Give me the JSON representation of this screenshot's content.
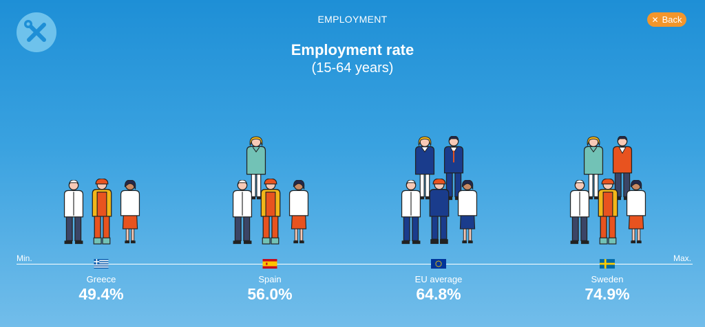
{
  "header": {
    "section_title": "EMPLOYMENT",
    "back_label": "Back",
    "app_icon": "tools-icon"
  },
  "chart_data": {
    "type": "pictogram",
    "title": "Employment rate",
    "subtitle": "(15-64 years)",
    "axis_min_label": "Min.",
    "axis_max_label": "Max.",
    "categories": [
      "Greece",
      "Spain",
      "EU average",
      "Sweden"
    ],
    "values": [
      49.4,
      56.0,
      64.8,
      74.9
    ],
    "value_labels": [
      "49.4%",
      "56.0%",
      "64.8%",
      "74.9%"
    ],
    "figures_shown": [
      3,
      4,
      5,
      5
    ]
  },
  "colors": {
    "background_top": "#1e8fd6",
    "background_bottom": "#72bdea",
    "accent": "#f3962b"
  }
}
